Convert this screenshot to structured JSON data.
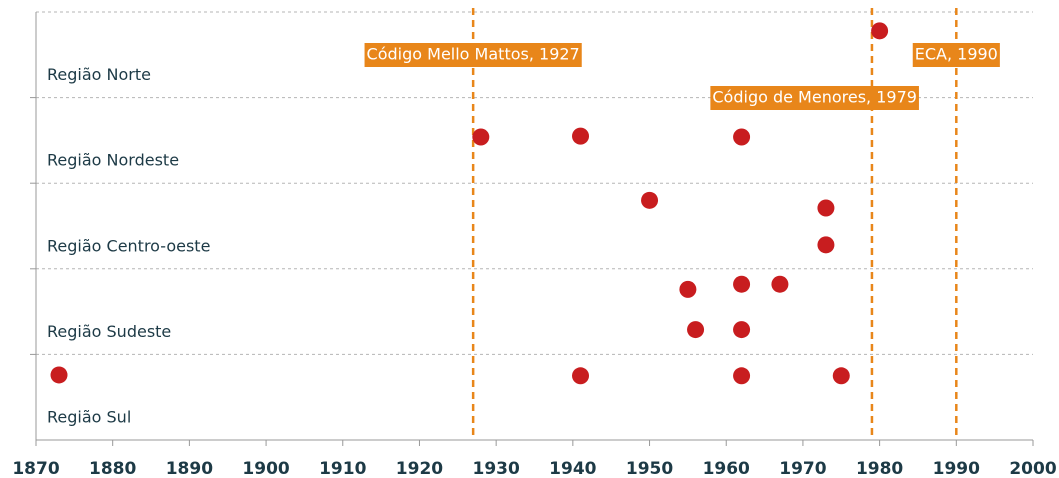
{
  "chart_data": {
    "type": "scatter",
    "categories": [
      "Região Norte",
      "Região Nordeste",
      "Região Centro-oeste",
      "Região Sudeste",
      "Região Sul"
    ],
    "series": [
      {
        "color": "#c81d1f",
        "x": [
          1980,
          1928,
          1941,
          1962,
          1950,
          1973,
          1973,
          1955,
          1962,
          1967,
          1956,
          1962,
          1873,
          1941,
          1962,
          1975
        ],
        "values": [
          4.78,
          3.54,
          3.55,
          3.54,
          2.8,
          2.71,
          2.28,
          1.76,
          1.82,
          1.82,
          1.29,
          1.29,
          0.76,
          0.75,
          0.75,
          0.75
        ]
      }
    ],
    "xlim": [
      1870,
      2000
    ],
    "xticks": [
      1870,
      1880,
      1890,
      1900,
      1910,
      1920,
      1930,
      1940,
      1950,
      1960,
      1970,
      1980,
      1990,
      2000
    ],
    "ylim": [
      0,
      5
    ],
    "annotations": [
      {
        "label": "Código Mello Mattos, 1927",
        "x": 1927
      },
      {
        "label": "Código de Menores, 1979",
        "x": 1979
      },
      {
        "label": "ECA, 1990",
        "x": 1990
      }
    ],
    "annotation_color": "#e8861a"
  }
}
